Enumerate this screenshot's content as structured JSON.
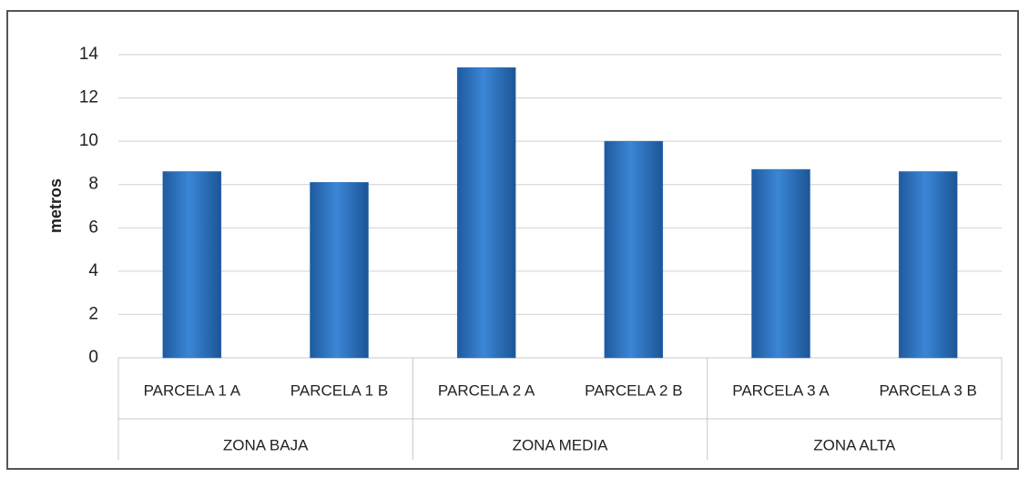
{
  "chart_data": {
    "type": "bar",
    "y_label": "metros",
    "categories": [
      "PARCELA 1 A",
      "PARCELA 1 B",
      "PARCELA 2 A",
      "PARCELA 2 B",
      "PARCELA 3 A",
      "PARCELA 3 B"
    ],
    "groups": [
      "ZONA BAJA",
      "ZONA MEDIA",
      "ZONA ALTA"
    ],
    "values": [
      8.6,
      8.1,
      13.4,
      10.0,
      8.7,
      8.6
    ],
    "color": "#2a6ebb",
    "ylim": [
      0,
      14
    ],
    "yticks": [
      0,
      2,
      4,
      6,
      8,
      10,
      12,
      14
    ],
    "grid": true
  }
}
